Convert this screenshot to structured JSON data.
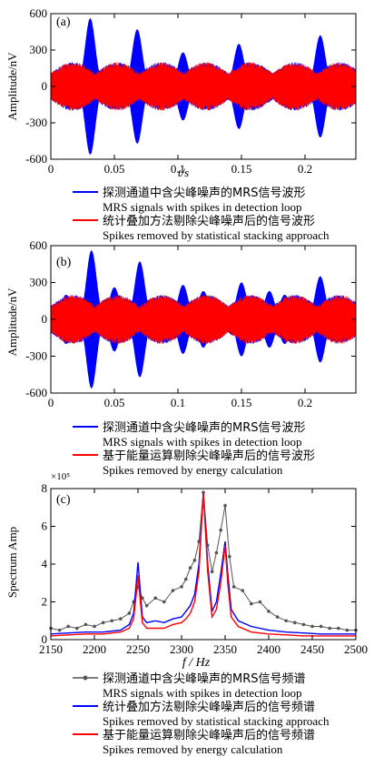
{
  "chart_data": [
    {
      "type": "line",
      "panel_label": "(a)",
      "xlabel": "t/s",
      "ylabel": "Amplitude/nV",
      "xlim": [
        0,
        0.24
      ],
      "ylim": [
        -600,
        600
      ],
      "xticks": [
        "0",
        "0.05",
        "0.1",
        "0.15",
        "0.2"
      ],
      "yticks": [
        "-600",
        "-300",
        "0",
        "300",
        "600"
      ],
      "spikes": [
        {
          "t": 0.031,
          "peak": 560
        },
        {
          "t": 0.068,
          "peak": 470
        },
        {
          "t": 0.104,
          "peak": 280
        },
        {
          "t": 0.148,
          "peak": 350
        },
        {
          "t": 0.212,
          "peak": 420
        }
      ],
      "series": [
        {
          "name": "探测通道中含尖峰噪声的MRS信号波形 MRS signals with spikes in detection loop",
          "color": "#0000ff",
          "envelope": 200
        },
        {
          "name": "统计叠加方法剔除尖峰噪声后的信号波形 Spikes removed by statistical stacking approach",
          "color": "#ff0000",
          "envelope": 200
        }
      ],
      "legend": [
        {
          "cn": "探测通道中含尖峰噪声的MRS信号波形",
          "en": "MRS signals with spikes in detection loop",
          "color": "#0000ff"
        },
        {
          "cn": "统计叠加方法剔除尖峰噪声后的信号波形",
          "en": "Spikes removed by statistical stacking  approach",
          "color": "#ff0000"
        }
      ]
    },
    {
      "type": "line",
      "panel_label": "(b)",
      "xlabel": "t/s",
      "ylabel": "Amplitude/nV",
      "xlim": [
        0,
        0.24
      ],
      "ylim": [
        -600,
        600
      ],
      "xticks": [
        "0",
        "0.05",
        "0.1",
        "0.15",
        "0.2"
      ],
      "yticks": [
        "-600",
        "-300",
        "0",
        "300",
        "600"
      ],
      "spikes": [
        {
          "t": 0.012,
          "peak": 200
        },
        {
          "t": 0.032,
          "peak": 560
        },
        {
          "t": 0.05,
          "peak": 260
        },
        {
          "t": 0.07,
          "peak": 470
        },
        {
          "t": 0.104,
          "peak": 280
        },
        {
          "t": 0.12,
          "peak": 230
        },
        {
          "t": 0.15,
          "peak": 300
        },
        {
          "t": 0.172,
          "peak": 230
        },
        {
          "t": 0.184,
          "peak": 200
        },
        {
          "t": 0.212,
          "peak": 350
        }
      ],
      "series": [
        {
          "name": "探测通道中含尖峰噪声的MRS信号波形 MRS signals with spikes in detection loop",
          "color": "#0000ff",
          "envelope": 200
        },
        {
          "name": "基于能量运算剔除尖峰噪声后的信号波形 Spikes removed by energy calculation",
          "color": "#ff0000",
          "envelope": 200
        }
      ],
      "legend": [
        {
          "cn": "探测通道中含尖峰噪声的MRS信号波形",
          "en": "MRS signals with spikes in detection loop",
          "color": "#0000ff"
        },
        {
          "cn": "基于能量运算剔除尖峰噪声后的信号波形",
          "en": "Spikes removed by energy calculation",
          "color": "#ff0000"
        }
      ]
    },
    {
      "type": "line",
      "panel_label": "(c)",
      "xlabel": "f / Hz",
      "ylabel": "Spectrum Amp",
      "y_multiplier": "×10⁵",
      "xlim": [
        2150,
        2500
      ],
      "ylim": [
        0,
        8
      ],
      "xticks": [
        "2150",
        "2200",
        "2250",
        "2300",
        "2350",
        "2400",
        "2450",
        "2500"
      ],
      "yticks": [
        "0",
        "2",
        "4",
        "6",
        "8"
      ],
      "series": [
        {
          "name": "探测通道中含尖峰噪声的MRS信号频谱 MRS signals with spikes in detection loop",
          "color": "#555555",
          "marker": "circle",
          "x": [
            2150,
            2160,
            2170,
            2180,
            2190,
            2200,
            2210,
            2220,
            2230,
            2240,
            2245,
            2250,
            2255,
            2260,
            2270,
            2280,
            2290,
            2300,
            2305,
            2310,
            2315,
            2320,
            2325,
            2330,
            2335,
            2340,
            2345,
            2350,
            2355,
            2360,
            2370,
            2380,
            2390,
            2400,
            2410,
            2420,
            2430,
            2440,
            2450,
            2460,
            2470,
            2480,
            2490,
            2500
          ],
          "values": [
            0.6,
            0.5,
            0.7,
            0.6,
            0.8,
            0.7,
            0.9,
            1.0,
            1.1,
            1.4,
            2.0,
            2.8,
            2.2,
            1.8,
            2.2,
            2.0,
            2.6,
            2.8,
            3.2,
            3.8,
            4.2,
            5.2,
            7.8,
            5.0,
            3.6,
            4.6,
            5.8,
            7.1,
            4.4,
            2.8,
            2.6,
            1.9,
            2.0,
            1.5,
            1.2,
            1.0,
            0.9,
            0.8,
            0.7,
            0.7,
            0.6,
            0.6,
            0.5,
            0.5
          ]
        },
        {
          "name": "统计叠加方法剔除尖峰噪声后的信号频谱 Spikes removed by statistical stacking approach",
          "color": "#0000ff",
          "x": [
            2150,
            2170,
            2190,
            2210,
            2230,
            2240,
            2245,
            2248,
            2250,
            2252,
            2255,
            2260,
            2270,
            2280,
            2290,
            2300,
            2305,
            2310,
            2315,
            2320,
            2325,
            2330,
            2335,
            2340,
            2345,
            2350,
            2353,
            2357,
            2365,
            2380,
            2400,
            2420,
            2440,
            2460,
            2480,
            2500
          ],
          "values": [
            0.3,
            0.35,
            0.4,
            0.4,
            0.5,
            0.8,
            1.4,
            3.0,
            4.1,
            3.0,
            1.2,
            0.9,
            1.0,
            0.9,
            1.1,
            1.2,
            1.5,
            1.8,
            2.4,
            4.0,
            7.8,
            4.0,
            1.5,
            2.0,
            3.5,
            5.2,
            3.5,
            1.6,
            1.0,
            0.7,
            0.5,
            0.4,
            0.35,
            0.3,
            0.3,
            0.3
          ]
        },
        {
          "name": "基于能量运算剔除尖峰噪声后的信号频谱 Spikes removed by energy calculation",
          "color": "#ff0000",
          "x": [
            2150,
            2170,
            2190,
            2210,
            2230,
            2240,
            2245,
            2248,
            2250,
            2252,
            2255,
            2260,
            2270,
            2280,
            2290,
            2300,
            2305,
            2310,
            2315,
            2320,
            2325,
            2330,
            2335,
            2340,
            2345,
            2350,
            2353,
            2357,
            2365,
            2380,
            2400,
            2420,
            2440,
            2460,
            2480,
            2500
          ],
          "values": [
            0.2,
            0.25,
            0.3,
            0.3,
            0.4,
            0.6,
            1.1,
            2.4,
            3.4,
            2.4,
            0.9,
            0.6,
            0.6,
            0.6,
            0.8,
            0.9,
            1.1,
            1.4,
            2.0,
            3.6,
            7.8,
            3.6,
            1.2,
            1.6,
            3.0,
            5.0,
            3.0,
            1.2,
            0.7,
            0.4,
            0.3,
            0.25,
            0.2,
            0.2,
            0.2,
            0.2
          ]
        }
      ],
      "legend": [
        {
          "cn": "探测通道中含尖峰噪声的MRS信号频谱",
          "en": "MRS signals with spikes in detection loop",
          "color": "#555555",
          "marker": "circle"
        },
        {
          "cn": "统计叠加方法剔除尖峰噪声后的信号频谱",
          "en": "Spikes removed by statistical stacking  approach",
          "color": "#0000ff"
        },
        {
          "cn": "基于能量运算剔除尖峰噪声后的信号频谱",
          "en": "Spikes removed by energy calculation",
          "color": "#ff0000"
        }
      ]
    }
  ]
}
